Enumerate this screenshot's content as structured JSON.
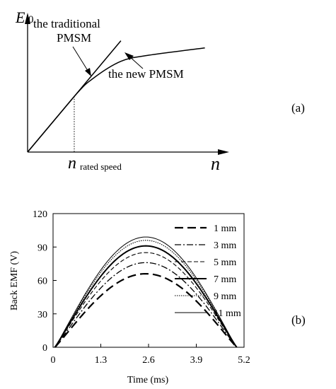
{
  "panel_a": {
    "panel_label": "(a)",
    "y_symbol": "E",
    "y_subscript": "0",
    "x_symbol": "n",
    "rated_speed_symbol": "n",
    "rated_speed_subscript": "rated speed",
    "traditional_label_line1": "the traditional",
    "traditional_label_line2": "PMSM",
    "new_label": "the new PMSM"
  },
  "panel_b": {
    "panel_label": "(b)"
  },
  "chart_data": [
    {
      "type": "line",
      "title": "",
      "xlabel": "n",
      "ylabel": "E0",
      "axis_values_shown": false,
      "annotations": [
        "n rated speed",
        "the traditional PMSM",
        "the new PMSM"
      ],
      "series": [
        {
          "name": "the traditional PMSM",
          "x": [
            0,
            1,
            2
          ],
          "y": [
            0,
            1,
            2
          ]
        },
        {
          "name": "the new PMSM",
          "x": [
            0,
            1,
            1.4,
            2,
            2.6,
            3.8
          ],
          "y": [
            0,
            1,
            1.32,
            1.63,
            1.74,
            1.87
          ]
        }
      ],
      "xlim": [
        0,
        4.2
      ],
      "ylim": [
        0,
        2.35
      ],
      "rated_speed_x": 1
    },
    {
      "type": "line",
      "title": "",
      "xlabel": "Time (ms)",
      "ylabel": "Back EMF (V)",
      "xlim": [
        0,
        5.2
      ],
      "ylim": [
        0,
        120
      ],
      "xticks": [
        "0",
        "1.3",
        "2.6",
        "3.9",
        "5.2"
      ],
      "yticks": [
        "0",
        "30",
        "60",
        "90",
        "120"
      ],
      "grid": false,
      "legend_position": "top-right",
      "series": [
        {
          "name": "1 mm",
          "color": "#000000",
          "style": "long-dash",
          "peak": 66,
          "x": [
            0,
            0.65,
            1.3,
            1.95,
            2.6,
            3.25,
            3.9,
            4.55,
            5.2
          ],
          "y": [
            0,
            24,
            45,
            60,
            66,
            60,
            45,
            24,
            0
          ]
        },
        {
          "name": "3 mm",
          "color": "#000000",
          "style": "dash-dot",
          "peak": 76,
          "x": [
            0,
            0.65,
            1.3,
            1.95,
            2.6,
            3.25,
            3.9,
            4.55,
            5.2
          ],
          "y": [
            0,
            28,
            52,
            69,
            76,
            69,
            52,
            28,
            0
          ]
        },
        {
          "name": "5 mm",
          "color": "#000000",
          "style": "dash",
          "peak": 85,
          "x": [
            0,
            0.65,
            1.3,
            1.95,
            2.6,
            3.25,
            3.9,
            4.55,
            5.2
          ],
          "y": [
            0,
            31,
            59,
            78,
            85,
            78,
            59,
            31,
            0
          ]
        },
        {
          "name": "7 mm",
          "color": "#000000",
          "style": "solid-thick",
          "peak": 91,
          "x": [
            0,
            0.65,
            1.3,
            1.95,
            2.6,
            3.25,
            3.9,
            4.55,
            5.2
          ],
          "y": [
            0,
            33,
            63,
            83,
            91,
            83,
            63,
            33,
            0
          ]
        },
        {
          "name": "9 mm",
          "color": "#000000",
          "style": "dotted",
          "peak": 96,
          "x": [
            0,
            0.65,
            1.3,
            1.95,
            2.6,
            3.25,
            3.9,
            4.55,
            5.2
          ],
          "y": [
            0,
            35,
            67,
            88,
            96,
            88,
            67,
            35,
            0
          ]
        },
        {
          "name": "11 mm",
          "color": "#000000",
          "style": "solid-thin",
          "peak": 99,
          "x": [
            0,
            0.65,
            1.3,
            1.95,
            2.6,
            3.25,
            3.9,
            4.55,
            5.2
          ],
          "y": [
            0,
            36,
            69,
            91,
            99,
            91,
            69,
            36,
            0
          ]
        }
      ]
    }
  ]
}
